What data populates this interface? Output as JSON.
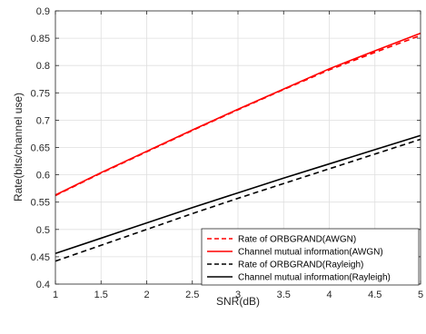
{
  "chart_data": {
    "type": "line",
    "title": "",
    "xlabel": "SNR(dB)",
    "ylabel": "Rate(bits/channel use)",
    "xlim": [
      1,
      5
    ],
    "ylim": [
      0.4,
      0.9
    ],
    "xticks": [
      "1",
      "1.5",
      "2",
      "2.5",
      "3",
      "3.5",
      "4",
      "4.5",
      "5"
    ],
    "yticks": [
      "0.4",
      "0.45",
      "0.5",
      "0.55",
      "0.6",
      "0.65",
      "0.7",
      "0.75",
      "0.8",
      "0.85",
      "0.9"
    ],
    "grid": true,
    "legend_position": "bottom-right",
    "x": [
      1,
      1.5,
      2,
      2.5,
      3,
      3.5,
      4,
      4.5,
      5
    ],
    "series": [
      {
        "name": "Rate of ORBGRAND(AWGN)",
        "color": "#ff0000",
        "dash": "dashed",
        "values": [
          0.562,
          0.603,
          0.642,
          0.681,
          0.719,
          0.756,
          0.792,
          0.824,
          0.855
        ]
      },
      {
        "name": "Channel mutual information(AWGN)",
        "color": "#ff0000",
        "dash": "solid",
        "values": [
          0.563,
          0.604,
          0.643,
          0.682,
          0.72,
          0.757,
          0.794,
          0.827,
          0.859
        ]
      },
      {
        "name": "Rate of ORBGRAND(Rayleigh)",
        "color": "#000000",
        "dash": "dashed",
        "values": [
          0.442,
          0.471,
          0.5,
          0.529,
          0.557,
          0.584,
          0.611,
          0.638,
          0.665
        ]
      },
      {
        "name": "Channel mutual information(Rayleigh)",
        "color": "#000000",
        "dash": "solid",
        "values": [
          0.456,
          0.484,
          0.512,
          0.54,
          0.567,
          0.594,
          0.62,
          0.646,
          0.672
        ]
      }
    ]
  }
}
